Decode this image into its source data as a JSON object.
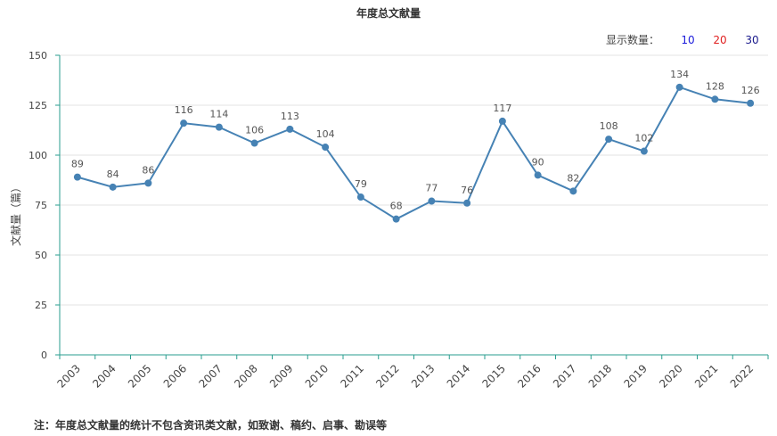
{
  "chart_data": {
    "type": "line",
    "title": "年度总文献量",
    "ylabel": "文献量（篇）",
    "xlabel": "",
    "ylim": [
      0,
      150
    ],
    "yticks": [
      0,
      25,
      50,
      75,
      100,
      125,
      150
    ],
    "categories": [
      "2003",
      "2004",
      "2005",
      "2006",
      "2007",
      "2008",
      "2009",
      "2010",
      "2011",
      "2012",
      "2013",
      "2014",
      "2015",
      "2016",
      "2017",
      "2018",
      "2019",
      "2020",
      "2021",
      "2022"
    ],
    "values": [
      89,
      84,
      86,
      116,
      114,
      106,
      113,
      104,
      79,
      68,
      77,
      76,
      117,
      90,
      82,
      108,
      102,
      134,
      128,
      126
    ],
    "grid": true,
    "line_color": "#4682b4",
    "axis_color": "#2a9d8f"
  },
  "display_count": {
    "label": "显示数量：",
    "options": [
      {
        "text": "10",
        "color": "#1a1adb"
      },
      {
        "text": "20",
        "color": "#e02020"
      },
      {
        "text": "30",
        "color": "#1a1a8c"
      }
    ]
  },
  "footnote": "注：年度总文献量的统计不包含资讯类文献，如致谢、稿约、启事、勘误等"
}
